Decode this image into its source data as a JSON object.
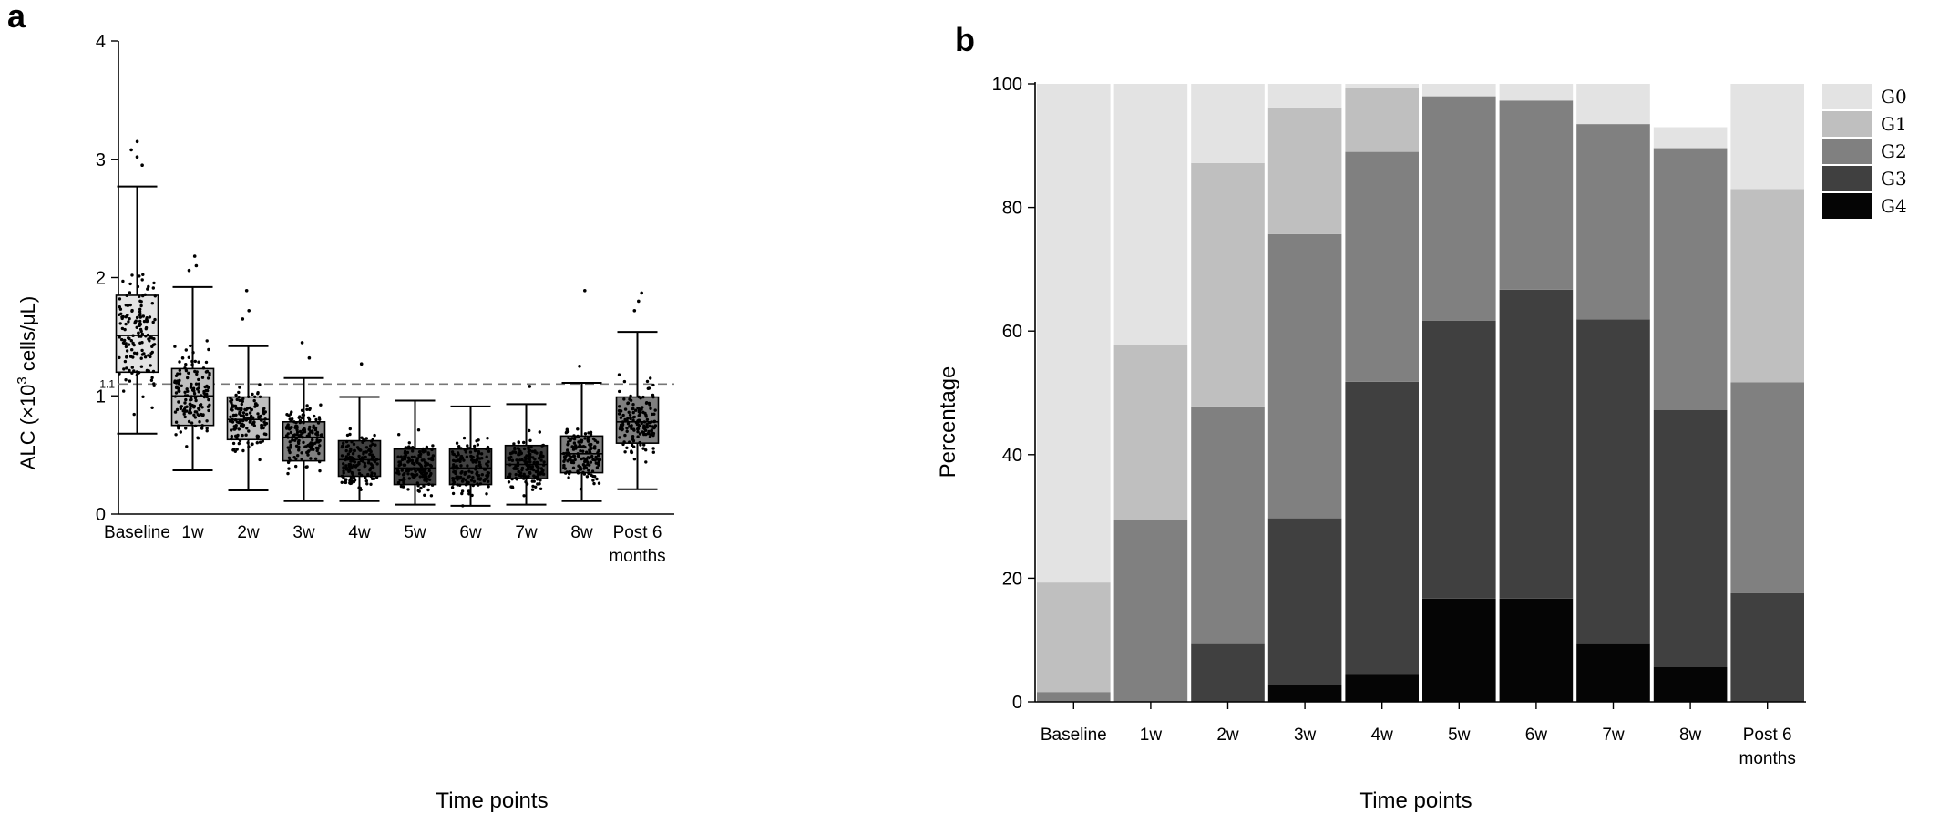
{
  "panels": {
    "a": {
      "letter": "a"
    },
    "b": {
      "letter": "b"
    }
  },
  "chart_data": [
    {
      "type": "box",
      "panel": "a",
      "xlabel": "Time points",
      "ylabel_main": "ALC (×10",
      "ylabel_sup": "3",
      "ylabel_tail": " cells/μL)",
      "ylim": [
        0,
        4
      ],
      "yticks": [
        0,
        1,
        2,
        3,
        4
      ],
      "reference_line": {
        "value": 1.1,
        "label": "1.1",
        "style": "dashed"
      },
      "categories": [
        [
          "Baseline"
        ],
        [
          "1w"
        ],
        [
          "2w"
        ],
        [
          "3w"
        ],
        [
          "4w"
        ],
        [
          "5w"
        ],
        [
          "6w"
        ],
        [
          "7w"
        ],
        [
          "8w"
        ],
        [
          "Post 6",
          "months"
        ]
      ],
      "boxes": [
        {
          "q1": 1.2,
          "median": 1.51,
          "q3": 1.85,
          "whisker_low": 0.68,
          "whisker_high": 2.77,
          "outliers_high": [
            3.15,
            3.08,
            3.02,
            2.95
          ],
          "fill": "#e3e3e3"
        },
        {
          "q1": 0.75,
          "median": 1.0,
          "q3": 1.23,
          "whisker_low": 0.37,
          "whisker_high": 1.92,
          "outliers_high": [
            2.18,
            2.1,
            2.06
          ],
          "fill": "#bfbfbf"
        },
        {
          "q1": 0.63,
          "median": 0.8,
          "q3": 0.99,
          "whisker_low": 0.2,
          "whisker_high": 1.42,
          "outliers_high": [
            1.89,
            1.72,
            1.65
          ],
          "fill": "#bfbfbf"
        },
        {
          "q1": 0.45,
          "median": 0.65,
          "q3": 0.78,
          "whisker_low": 0.11,
          "whisker_high": 1.15,
          "outliers_high": [
            1.45,
            1.32
          ],
          "fill": "#808080"
        },
        {
          "q1": 0.32,
          "median": 0.46,
          "q3": 0.62,
          "whisker_low": 0.11,
          "whisker_high": 0.99,
          "outliers_high": [
            1.27
          ],
          "fill": "#404040"
        },
        {
          "q1": 0.25,
          "median": 0.39,
          "q3": 0.55,
          "whisker_low": 0.08,
          "whisker_high": 0.96,
          "outliers_high": [],
          "fill": "#404040"
        },
        {
          "q1": 0.25,
          "median": 0.39,
          "q3": 0.55,
          "whisker_low": 0.07,
          "whisker_high": 0.91,
          "outliers_high": [],
          "fill": "#404040"
        },
        {
          "q1": 0.3,
          "median": 0.42,
          "q3": 0.58,
          "whisker_low": 0.08,
          "whisker_high": 0.93,
          "outliers_high": [
            1.08
          ],
          "fill": "#404040"
        },
        {
          "q1": 0.35,
          "median": 0.51,
          "q3": 0.66,
          "whisker_low": 0.11,
          "whisker_high": 1.11,
          "outliers_high": [
            1.89,
            1.25
          ],
          "fill": "#808080"
        },
        {
          "q1": 0.6,
          "median": 0.78,
          "q3": 0.99,
          "whisker_low": 0.21,
          "whisker_high": 1.54,
          "outliers_high": [
            1.87,
            1.8,
            1.72
          ],
          "fill": "#808080"
        }
      ],
      "grid": false
    },
    {
      "type": "stacked-bar",
      "panel": "b",
      "xlabel": "Time points",
      "ylabel": "Percentage",
      "ylim": [
        0,
        100
      ],
      "yticks": [
        0,
        20,
        40,
        60,
        80,
        100
      ],
      "legend_position": "top-right",
      "categories": [
        [
          "Baseline"
        ],
        [
          "1w"
        ],
        [
          "2w"
        ],
        [
          "3w"
        ],
        [
          "4w"
        ],
        [
          "5w"
        ],
        [
          "6w"
        ],
        [
          "7w"
        ],
        [
          "8w"
        ],
        [
          "Post 6",
          "months"
        ]
      ],
      "series": [
        {
          "name": "G4",
          "color": "#050505",
          "values": [
            0,
            0,
            0,
            2.7,
            4.5,
            16.7,
            16.7,
            9.5,
            5.6,
            0
          ]
        },
        {
          "name": "G3",
          "color": "#404040",
          "values": [
            0,
            0,
            9.5,
            27.0,
            47.3,
            45.0,
            50.0,
            52.4,
            41.6,
            17.6
          ]
        },
        {
          "name": "G2",
          "color": "#808080",
          "values": [
            1.6,
            29.5,
            38.3,
            46.0,
            37.2,
            36.3,
            30.6,
            31.6,
            42.4,
            34.1
          ]
        },
        {
          "name": "G1",
          "color": "#bfbfbf",
          "values": [
            17.7,
            28.3,
            39.4,
            20.5,
            10.4,
            0.0,
            0.0,
            0.0,
            0.0,
            31.3
          ]
        },
        {
          "name": "G0",
          "color": "#e3e3e3",
          "values": [
            80.7,
            42.2,
            12.8,
            3.8,
            0.6,
            2.0,
            2.7,
            6.5,
            3.4,
            17.0
          ]
        }
      ],
      "legend_order": [
        "G0",
        "G1",
        "G2",
        "G3",
        "G4"
      ]
    }
  ]
}
